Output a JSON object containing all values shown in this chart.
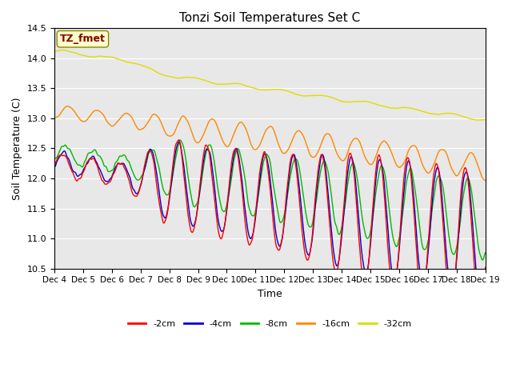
{
  "title": "Tonzi Soil Temperatures Set C",
  "xlabel": "Time",
  "ylabel": "Soil Temperature (C)",
  "ylim": [
    10.5,
    14.5
  ],
  "tick_labels": [
    "Dec 4",
    "Dec 5",
    "Dec 6",
    "Dec 7",
    "Dec 8",
    "Dec 9",
    "Dec 10",
    "Dec 11",
    "Dec 12",
    "Dec 13",
    "Dec 14",
    "Dec 15",
    "Dec 16",
    "Dec 17",
    "Dec 18",
    "Dec 19"
  ],
  "legend_labels": [
    "-2cm",
    "-4cm",
    "-8cm",
    "-16cm",
    "-32cm"
  ],
  "legend_colors": [
    "#ff0000",
    "#0000cc",
    "#00bb00",
    "#ff8800",
    "#dddd00"
  ],
  "annotation_text": "TZ_fmet",
  "annotation_bg": "#ffffcc",
  "annotation_fg": "#880000",
  "bg_color": "#e8e8e8",
  "line_width": 1.0,
  "yticks": [
    10.5,
    11.0,
    11.5,
    12.0,
    12.5,
    13.0,
    13.5,
    14.0,
    14.5
  ]
}
